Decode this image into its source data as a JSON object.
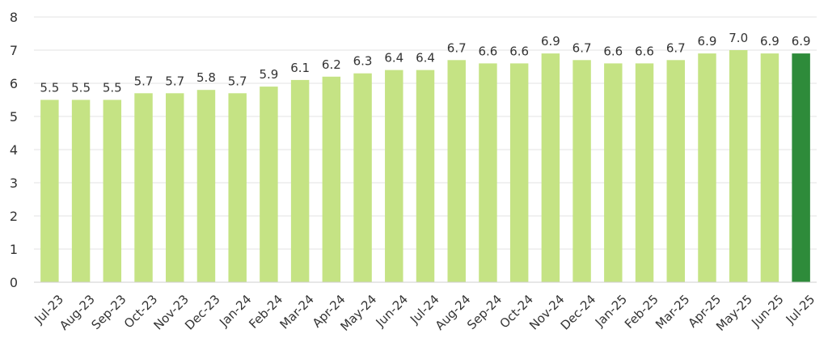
{
  "chart_data": {
    "type": "bar",
    "categories": [
      "Jul-23",
      "Aug-23",
      "Sep-23",
      "Oct-23",
      "Nov-23",
      "Dec-23",
      "Jan-24",
      "Feb-24",
      "Mar-24",
      "Apr-24",
      "May-24",
      "Jun-24",
      "Jul-24",
      "Aug-24",
      "Sep-24",
      "Oct-24",
      "Nov-24",
      "Dec-24",
      "Jan-25",
      "Feb-25",
      "Mar-25",
      "Apr-25",
      "May-25",
      "Jun-25",
      "Jul-25"
    ],
    "values": [
      5.5,
      5.5,
      5.5,
      5.7,
      5.7,
      5.8,
      5.7,
      5.9,
      6.1,
      6.2,
      6.3,
      6.4,
      6.4,
      6.7,
      6.6,
      6.6,
      6.9,
      6.7,
      6.6,
      6.6,
      6.7,
      6.9,
      7.0,
      6.9,
      6.9
    ],
    "data_labels": [
      "5.5",
      "5.5",
      "5.5",
      "5.7",
      "5.7",
      "5.8",
      "5.7",
      "5.9",
      "6.1",
      "6.2",
      "6.3",
      "6.4",
      "6.4",
      "6.7",
      "6.6",
      "6.6",
      "6.9",
      "6.7",
      "6.6",
      "6.6",
      "6.7",
      "6.9",
      "7.0",
      "6.9",
      "6.9"
    ],
    "ylim": [
      0,
      8
    ],
    "yticks": [
      0,
      1,
      2,
      3,
      4,
      5,
      6,
      7,
      8
    ],
    "grid": true,
    "colors": {
      "bar": "#c5e384",
      "highlight": "#2e8b3a"
    },
    "highlight_index": 24,
    "title": "",
    "xlabel": "",
    "ylabel": ""
  }
}
